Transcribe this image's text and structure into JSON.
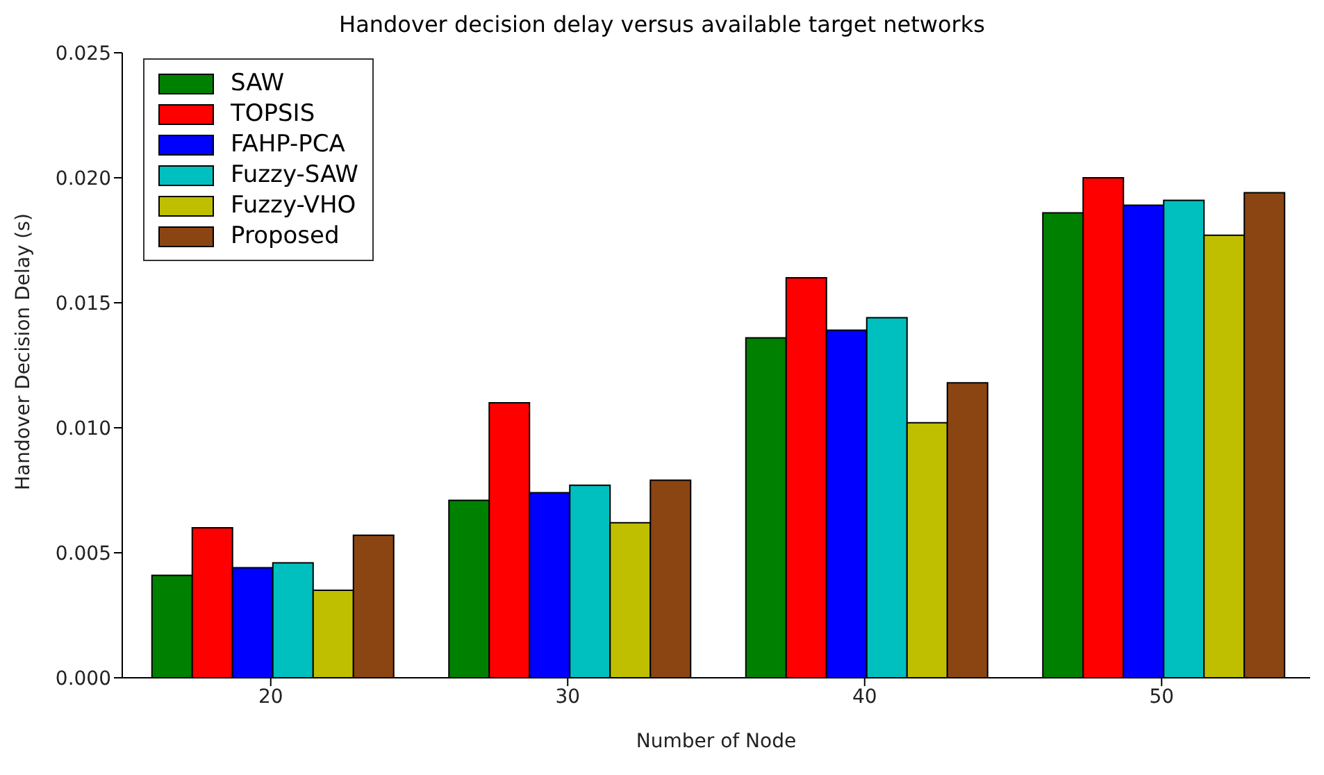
{
  "chart_data": {
    "type": "bar",
    "title": "Handover decision delay versus available target networks",
    "xlabel": "Number of Node",
    "ylabel": "Handover Decision Delay (s)",
    "categories": [
      "20",
      "30",
      "40",
      "50"
    ],
    "series": [
      {
        "name": "SAW",
        "color": "#008000",
        "values": [
          0.0041,
          0.0071,
          0.0136,
          0.0186
        ]
      },
      {
        "name": "TOPSIS",
        "color": "#ff0000",
        "values": [
          0.006,
          0.011,
          0.016,
          0.02
        ]
      },
      {
        "name": "FAHP-PCA",
        "color": "#0000ff",
        "values": [
          0.0044,
          0.0074,
          0.0139,
          0.0189
        ]
      },
      {
        "name": "Fuzzy-SAW",
        "color": "#00bfbf",
        "values": [
          0.0046,
          0.0077,
          0.0144,
          0.0191
        ]
      },
      {
        "name": "Fuzzy-VHO",
        "color": "#bfbf00",
        "values": [
          0.0035,
          0.0062,
          0.0102,
          0.0177
        ]
      },
      {
        "name": "Proposed",
        "color": "#8b4513",
        "values": [
          0.0057,
          0.0079,
          0.0118,
          0.0194
        ]
      }
    ],
    "ylim": [
      0,
      0.025
    ],
    "yticks": [
      {
        "value": 0,
        "label": "0.000"
      },
      {
        "value": 0.005,
        "label": "0.005"
      },
      {
        "value": 0.01,
        "label": "0.010"
      },
      {
        "value": 0.015,
        "label": "0.015"
      },
      {
        "value": 0.02,
        "label": "0.020"
      },
      {
        "value": 0.025,
        "label": "0.025"
      }
    ],
    "grid": false,
    "legend": "top left"
  }
}
